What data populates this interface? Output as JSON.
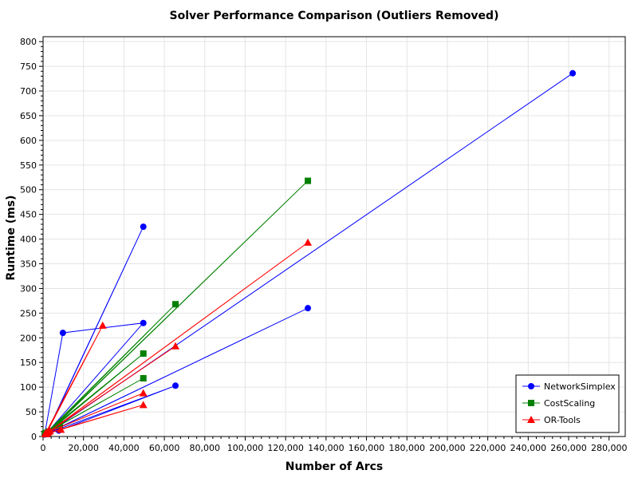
{
  "chart_data": {
    "type": "line",
    "title": "Solver Performance Comparison (Outliers Removed)",
    "xlabel": "Number of Arcs",
    "ylabel": "Runtime (ms)",
    "xlim": [
      0,
      288000
    ],
    "ylim": [
      0,
      810
    ],
    "x_ticks": [
      0,
      20000,
      40000,
      60000,
      80000,
      100000,
      120000,
      140000,
      160000,
      180000,
      200000,
      220000,
      240000,
      260000,
      280000
    ],
    "y_ticks": [
      0,
      50,
      100,
      150,
      200,
      250,
      300,
      350,
      400,
      450,
      500,
      550,
      600,
      650,
      700,
      750,
      800
    ],
    "grid": true,
    "legend_position": "bottom-right",
    "series": [
      {
        "name": "NetworkSimplex",
        "color": "#0000ff",
        "marker": "circle",
        "x": [
          800,
          9800,
          49600,
          2000,
          49600,
          1600,
          7800,
          65500,
          1200,
          131000,
          2400,
          262000,
          3200
        ],
        "y": [
          4,
          210,
          230,
          8,
          425,
          6,
          12,
          103,
          5,
          260,
          7,
          736,
          9
        ]
      },
      {
        "name": "CostScaling",
        "color": "#008000",
        "marker": "square",
        "x": [
          900,
          7800,
          49600,
          1500,
          65500,
          2500,
          131000,
          3000,
          49600,
          1000,
          8300
        ],
        "y": [
          5,
          22,
          118,
          7,
          268,
          9,
          518,
          10,
          168,
          6,
          25
        ]
      },
      {
        "name": "OR-Tools",
        "color": "#ff0000",
        "marker": "triangle",
        "x": [
          1100,
          29500,
          1800,
          49600,
          2600,
          65500,
          3400,
          131000,
          2200,
          49600,
          1400,
          8800
        ],
        "y": [
          6,
          225,
          8,
          88,
          9,
          183,
          11,
          393,
          7,
          64,
          5,
          14
        ]
      }
    ]
  }
}
